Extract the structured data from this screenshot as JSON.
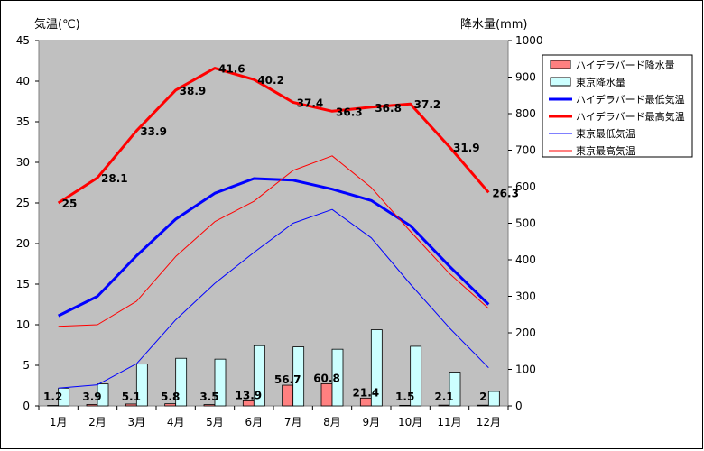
{
  "chart_data": {
    "type": "bar+line",
    "categories": [
      "1月",
      "2月",
      "3月",
      "4月",
      "5月",
      "6月",
      "7月",
      "8月",
      "9月",
      "10月",
      "11月",
      "12月"
    ],
    "y_left": {
      "label": "気温(℃)",
      "range": [
        0,
        45
      ],
      "ticks": [
        "0",
        "5",
        "10",
        "15",
        "20",
        "25",
        "30",
        "35",
        "40",
        "45"
      ]
    },
    "y_right": {
      "label": "降水量(mm)",
      "range": [
        0,
        1000
      ],
      "ticks": [
        "0",
        "100",
        "200",
        "300",
        "400",
        "500",
        "600",
        "700",
        "800",
        "900",
        "1000"
      ]
    },
    "grid": false,
    "legend_position": "right",
    "series": [
      {
        "name": "ハイデラバード降水量",
        "type": "bar",
        "axis": "right",
        "color": "#ff8080",
        "values": [
          1.2,
          3.9,
          5.1,
          5.8,
          3.5,
          13.9,
          56.7,
          60.8,
          21.4,
          1.5,
          2.1,
          2
        ],
        "labels": [
          "1.2",
          "3.9",
          "5.1",
          "5.8",
          "3.5",
          "13.9",
          "56.7",
          "60.8",
          "21.4",
          "1.5",
          "2.1",
          "2"
        ]
      },
      {
        "name": "東京降水量",
        "type": "bar",
        "axis": "right",
        "color": "#ccffff",
        "values": [
          48.6,
          60.2,
          114.5,
          130.3,
          128,
          164.9,
          161.5,
          155.1,
          208.5,
          163.1,
          92.5,
          39.6
        ]
      },
      {
        "name": "ハイデラバード最低気温",
        "type": "line",
        "axis": "left",
        "color": "#0000ff",
        "width": 3,
        "values": [
          11.1,
          13.5,
          18.5,
          23,
          26.2,
          28,
          27.8,
          26.7,
          25.3,
          22.2,
          17.2,
          12.5
        ]
      },
      {
        "name": "ハイデラバード最高気温",
        "type": "line",
        "axis": "left",
        "color": "#ff0000",
        "width": 3,
        "values": [
          25,
          28.1,
          33.9,
          38.9,
          41.6,
          40.2,
          37.4,
          36.3,
          36.8,
          37.2,
          31.9,
          26.3
        ],
        "labels": [
          "25",
          "28.1",
          "33.9",
          "38.9",
          "41.6",
          "40.2",
          "37.4",
          "36.3",
          "36.8",
          "37.2",
          "31.9",
          "26.3"
        ]
      },
      {
        "name": "東京最低気温",
        "type": "line",
        "axis": "left",
        "color": "#0000ff",
        "width": 1,
        "values": [
          2.2,
          2.6,
          5.2,
          10.6,
          15.1,
          18.9,
          22.5,
          24.2,
          20.7,
          15,
          9.6,
          4.7
        ]
      },
      {
        "name": "東京最高気温",
        "type": "line",
        "axis": "left",
        "color": "#ff0000",
        "width": 1,
        "values": [
          9.8,
          10,
          12.9,
          18.4,
          22.7,
          25.2,
          29,
          30.8,
          26.9,
          21.5,
          16.3,
          12
        ]
      }
    ]
  }
}
